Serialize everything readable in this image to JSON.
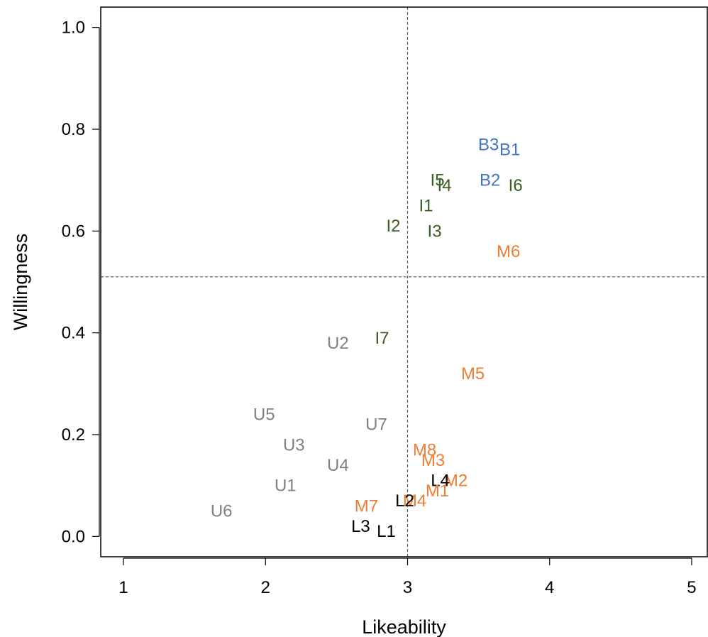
{
  "chart_data": {
    "type": "scatter",
    "xlabel": "Likeability",
    "ylabel": "Willingness",
    "xlim": [
      0.84,
      5.11
    ],
    "ylim": [
      -0.04,
      1.04
    ],
    "xticks": [
      1,
      2,
      3,
      4,
      5
    ],
    "yticks": [
      0.0,
      0.2,
      0.4,
      0.6,
      0.8,
      1.0
    ],
    "xtick_labels": [
      "1",
      "2",
      "3",
      "4",
      "5"
    ],
    "ytick_labels": [
      "0.0",
      "0.2",
      "0.4",
      "0.6",
      "0.8",
      "1.0"
    ],
    "reference_lines": {
      "x": 3.0,
      "y": 0.51
    },
    "grid": false,
    "legend": "none",
    "colors": {
      "B": "#4472C4",
      "I": "#375E1F",
      "M": "#ED7D31",
      "U": "#808080",
      "L": "#000000"
    },
    "points": [
      {
        "label": "B3",
        "group": "B",
        "x": 3.57,
        "y": 0.77
      },
      {
        "label": "B1",
        "group": "B",
        "x": 3.72,
        "y": 0.76
      },
      {
        "label": "B2",
        "group": "B",
        "x": 3.58,
        "y": 0.7
      },
      {
        "label": "I5",
        "group": "I",
        "x": 3.21,
        "y": 0.7
      },
      {
        "label": "I4",
        "group": "I",
        "x": 3.26,
        "y": 0.69
      },
      {
        "label": "I6",
        "group": "I",
        "x": 3.76,
        "y": 0.69
      },
      {
        "label": "I1",
        "group": "I",
        "x": 3.13,
        "y": 0.65
      },
      {
        "label": "I2",
        "group": "I",
        "x": 2.9,
        "y": 0.61
      },
      {
        "label": "I3",
        "group": "I",
        "x": 3.19,
        "y": 0.6
      },
      {
        "label": "M6",
        "group": "M",
        "x": 3.71,
        "y": 0.56
      },
      {
        "label": "I7",
        "group": "I",
        "x": 2.82,
        "y": 0.39
      },
      {
        "label": "U2",
        "group": "U",
        "x": 2.51,
        "y": 0.38
      },
      {
        "label": "M5",
        "group": "M",
        "x": 3.46,
        "y": 0.32
      },
      {
        "label": "U5",
        "group": "U",
        "x": 1.99,
        "y": 0.24
      },
      {
        "label": "U7",
        "group": "U",
        "x": 2.78,
        "y": 0.22
      },
      {
        "label": "U3",
        "group": "U",
        "x": 2.2,
        "y": 0.18
      },
      {
        "label": "M8",
        "group": "M",
        "x": 3.12,
        "y": 0.17
      },
      {
        "label": "M3",
        "group": "M",
        "x": 3.18,
        "y": 0.15
      },
      {
        "label": "U4",
        "group": "U",
        "x": 2.51,
        "y": 0.14
      },
      {
        "label": "M2",
        "group": "M",
        "x": 3.34,
        "y": 0.11
      },
      {
        "label": "L4",
        "group": "L",
        "x": 3.23,
        "y": 0.11
      },
      {
        "label": "M1",
        "group": "M",
        "x": 3.21,
        "y": 0.09
      },
      {
        "label": "U1",
        "group": "U",
        "x": 2.14,
        "y": 0.1
      },
      {
        "label": "M4",
        "group": "M",
        "x": 3.05,
        "y": 0.07
      },
      {
        "label": "M7",
        "group": "M",
        "x": 2.71,
        "y": 0.06
      },
      {
        "label": "L2",
        "group": "L",
        "x": 2.98,
        "y": 0.07
      },
      {
        "label": "U6",
        "group": "U",
        "x": 1.69,
        "y": 0.05
      },
      {
        "label": "L3",
        "group": "L",
        "x": 2.67,
        "y": 0.02
      },
      {
        "label": "L1",
        "group": "L",
        "x": 2.85,
        "y": 0.01
      }
    ]
  }
}
